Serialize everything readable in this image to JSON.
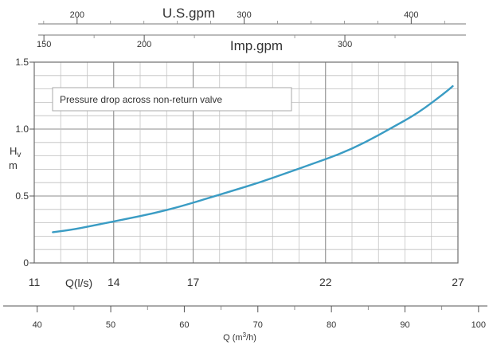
{
  "chart_data": {
    "type": "line",
    "annotation": "Pressure drop across non-return valve",
    "ylabel_main": "H",
    "ylabel_sub": "v",
    "yunit": "m",
    "xlabel_ls": "Q(l/s)",
    "xlabel_m3h": "Q (m",
    "xlabel_m3h_sup": "3",
    "xlabel_m3h_tail": "/h)",
    "label_usgpm": "U.S.gpm",
    "label_impgpm": "Imp.gpm",
    "x_ls_range": [
      11,
      27
    ],
    "ylim": [
      0,
      1.5
    ],
    "y_ticks": [
      {
        "v": 0,
        "label": "0"
      },
      {
        "v": 0.5,
        "label": "0.5"
      },
      {
        "v": 1.0,
        "label": "1.0"
      },
      {
        "v": 1.5,
        "label": "1.5"
      }
    ],
    "ls_ticks": [
      {
        "v": 11,
        "label": "11"
      },
      {
        "v": 14,
        "label": "14"
      },
      {
        "v": 17,
        "label": "17"
      },
      {
        "v": 22,
        "label": "22"
      },
      {
        "v": 27,
        "label": "27"
      }
    ],
    "m3h_ticks": [
      {
        "v": 40,
        "label": "40"
      },
      {
        "v": 50,
        "label": "50"
      },
      {
        "v": 60,
        "label": "60"
      },
      {
        "v": 70,
        "label": "70"
      },
      {
        "v": 80,
        "label": "80"
      },
      {
        "v": 90,
        "label": "90"
      },
      {
        "v": 100,
        "label": "100"
      }
    ],
    "usgpm_ticks": [
      {
        "v": 200,
        "label": "200"
      },
      {
        "v": 300,
        "label": "300"
      },
      {
        "v": 400,
        "label": "400"
      }
    ],
    "impgpm_ticks": [
      {
        "v": 150,
        "label": "150"
      },
      {
        "v": 200,
        "label": "200"
      },
      {
        "v": 300,
        "label": "300"
      }
    ],
    "grid": true,
    "series": [
      {
        "color": "#3a9cc4",
        "x": [
          11.7,
          12.5,
          13.5,
          14.5,
          15.5,
          16.5,
          17.5,
          18.5,
          19.5,
          20.5,
          21.5,
          22.5,
          23.5,
          24.5,
          25.5,
          26.5,
          26.8
        ],
        "y": [
          0.23,
          0.25,
          0.29,
          0.33,
          0.37,
          0.42,
          0.48,
          0.54,
          0.6,
          0.67,
          0.74,
          0.81,
          0.9,
          1.01,
          1.12,
          1.27,
          1.32
        ]
      }
    ]
  }
}
